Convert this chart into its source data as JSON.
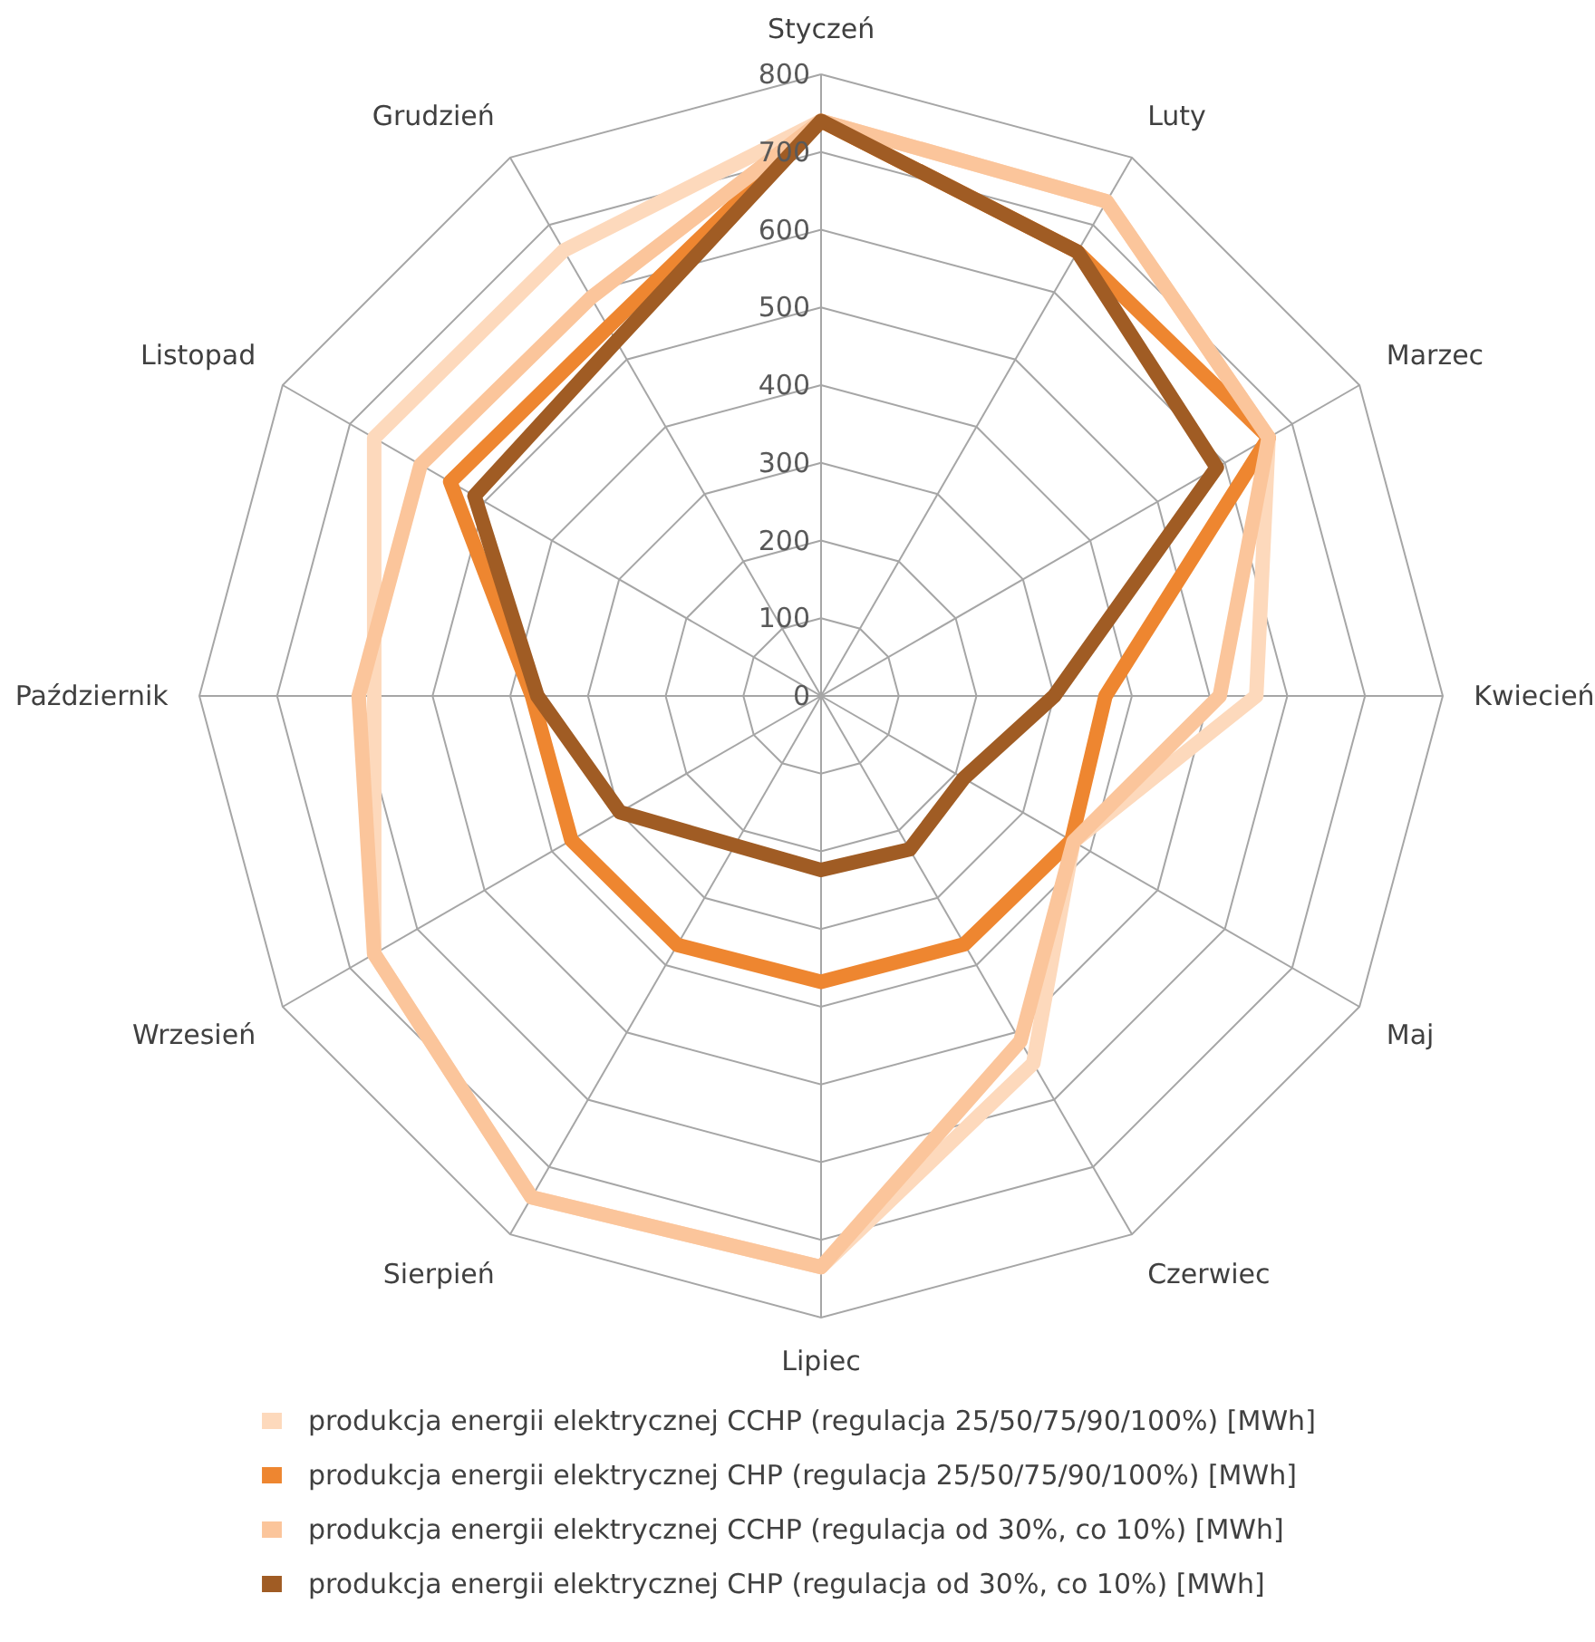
{
  "chart_data": {
    "type": "radar",
    "categories": [
      "Styczeń",
      "Luty",
      "Marzec",
      "Kwiecień",
      "Maj",
      "Czerwiec",
      "Lipiec",
      "Sierpień",
      "Wrzesień",
      "Październik",
      "Listopad",
      "Grudzień"
    ],
    "ylim": [
      0,
      800
    ],
    "yticks": [
      0,
      100,
      200,
      300,
      400,
      500,
      600,
      700,
      800
    ],
    "grid": true,
    "legend": "bottom",
    "series": [
      {
        "name": "produkcja energii elektrycznej CCHP (regulacja 25/50/75/90/100%) [MWh]",
        "color": "#fdd9bc",
        "values": [
          740,
          735,
          665,
          560,
          375,
          546,
          735,
          745,
          664,
          575,
          664,
          662
        ]
      },
      {
        "name": "produkcja energii elektrycznej CHP (regulacja 25/50/75/90/100%) [MWh]",
        "color": "#ee8630",
        "values": [
          740,
          660,
          665,
          366,
          372,
          369,
          368,
          370,
          371,
          372,
          551,
          548
        ]
      },
      {
        "name": "produkcja energii elektrycznej CCHP (regulacja od 30%, co 10%) [MWh]",
        "color": "#fbc59b",
        "values": [
          740,
          735,
          665,
          513,
          375,
          513,
          735,
          745,
          664,
          595,
          595,
          592
        ]
      },
      {
        "name": "produkcja energii elektrycznej CHP (regulacja od 30%, co 10%) [MWh]",
        "color": "#a05c24",
        "values": [
          740,
          660,
          588,
          300,
          212,
          228,
          224,
          222,
          299,
          365,
          515,
          527
        ]
      }
    ]
  }
}
